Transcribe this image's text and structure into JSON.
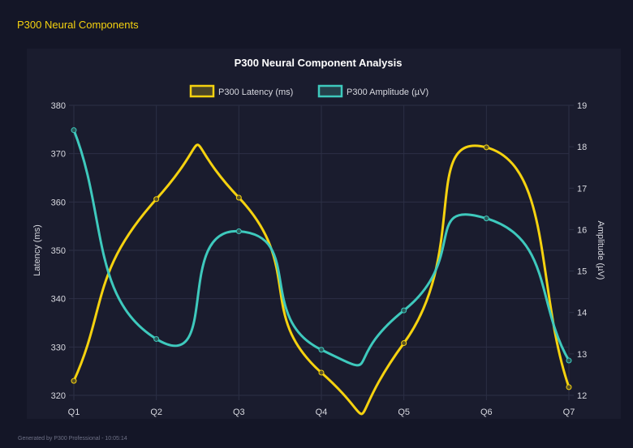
{
  "header": {
    "title": "P300 Neural Components"
  },
  "footer": {
    "text": "Generated by P300 Professional - 10:05:14"
  },
  "colors": {
    "latency": "#f5d20f",
    "amplitude": "#3ec9bd",
    "grid": "#2c2f45",
    "text": "#d8d9e0"
  },
  "chart_data": {
    "type": "line",
    "title": "P300 Neural Component Analysis",
    "categories": [
      "Q1",
      "Q2",
      "Q3",
      "Q4",
      "Q5",
      "Q6",
      "Q7"
    ],
    "series": [
      {
        "name": "P300 Latency (ms)",
        "axis": "left",
        "values": [
          323,
          360.6,
          360.9,
          324.7,
          330.8,
          371.3,
          321.7
        ]
      },
      {
        "name": "P300 Amplitude (µV)",
        "axis": "right",
        "values": [
          18.4,
          13.36,
          15.96,
          13.1,
          14.05,
          16.27,
          12.84
        ]
      }
    ],
    "ylabel": "Latency (ms)",
    "ylim": [
      320,
      380
    ],
    "yticks": [
      320,
      330,
      340,
      350,
      360,
      370,
      380
    ],
    "y2label": "Amplitude (µV)",
    "y2lim": [
      12,
      19
    ],
    "y2ticks": [
      12,
      13,
      14,
      15,
      16,
      17,
      18,
      19
    ],
    "grid": true,
    "legend": "top"
  }
}
